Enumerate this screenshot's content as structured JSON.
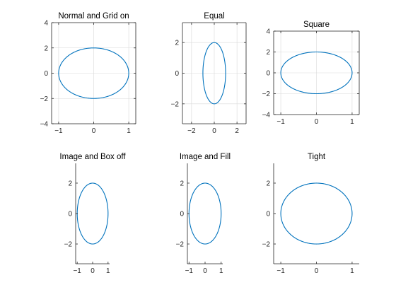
{
  "figure": {
    "background": "#ffffff",
    "curve_color": "#0072BD",
    "axis_color": "#262626",
    "grid_color": "#d9d9d9"
  },
  "chart_data": [
    {
      "type": "line",
      "title": "Normal and Grid on",
      "series": [
        {
          "x_function": "sin(t)",
          "y_function": "2*cos(t)",
          "t_range": [
            0,
            6.2832
          ],
          "note": "ellipse"
        }
      ],
      "xlim": [
        -1.2,
        1.2
      ],
      "ylim": [
        -4,
        4
      ],
      "xticks": [
        -1,
        0,
        1
      ],
      "yticks": [
        -4,
        -2,
        0,
        2,
        4
      ],
      "grid": true,
      "box": true
    },
    {
      "type": "line",
      "title": "Equal",
      "series": [
        {
          "x_function": "sin(t)",
          "y_function": "2*cos(t)",
          "t_range": [
            0,
            6.2832
          ]
        }
      ],
      "xlim": [
        -2.8,
        2.8
      ],
      "ylim": [
        -3.3,
        3.3
      ],
      "xticks": [
        -2,
        0,
        2
      ],
      "yticks": [
        -2,
        0,
        2
      ],
      "grid": true,
      "box": true
    },
    {
      "type": "line",
      "title": "Square",
      "series": [
        {
          "x_function": "sin(t)",
          "y_function": "2*cos(t)",
          "t_range": [
            0,
            6.2832
          ]
        }
      ],
      "xlim": [
        -1.2,
        1.2
      ],
      "ylim": [
        -4,
        4
      ],
      "xticks": [
        -1,
        0,
        1
      ],
      "yticks": [
        -4,
        -2,
        0,
        2,
        4
      ],
      "grid": true,
      "box": true
    },
    {
      "type": "line",
      "title": "Image and Box off",
      "series": [
        {
          "x_function": "sin(t)",
          "y_function": "2*cos(t)",
          "t_range": [
            0,
            6.2832
          ]
        }
      ],
      "xlim": [
        -1.1,
        1.1
      ],
      "ylim": [
        -3.3,
        3.3
      ],
      "xticks": [
        -1,
        0,
        1
      ],
      "yticks": [
        -2,
        0,
        2
      ],
      "grid": false,
      "box": false
    },
    {
      "type": "line",
      "title": "Image and Fill",
      "series": [
        {
          "x_function": "sin(t)",
          "y_function": "2*cos(t)",
          "t_range": [
            0,
            6.2832
          ]
        }
      ],
      "xlim": [
        -1.1,
        1.1
      ],
      "ylim": [
        -3.3,
        3.3
      ],
      "xticks": [
        -1,
        0,
        1
      ],
      "yticks": [
        -2,
        0,
        2
      ],
      "grid": false,
      "box": false
    },
    {
      "type": "line",
      "title": "Tight",
      "series": [
        {
          "x_function": "sin(t)",
          "y_function": "2*cos(t)",
          "t_range": [
            0,
            6.2832
          ]
        }
      ],
      "xlim": [
        -1.2,
        1.2
      ],
      "ylim": [
        -3.3,
        3.3
      ],
      "xticks": [
        -1,
        0,
        1
      ],
      "yticks": [
        -2,
        0,
        2
      ],
      "grid": false,
      "box": false
    }
  ]
}
